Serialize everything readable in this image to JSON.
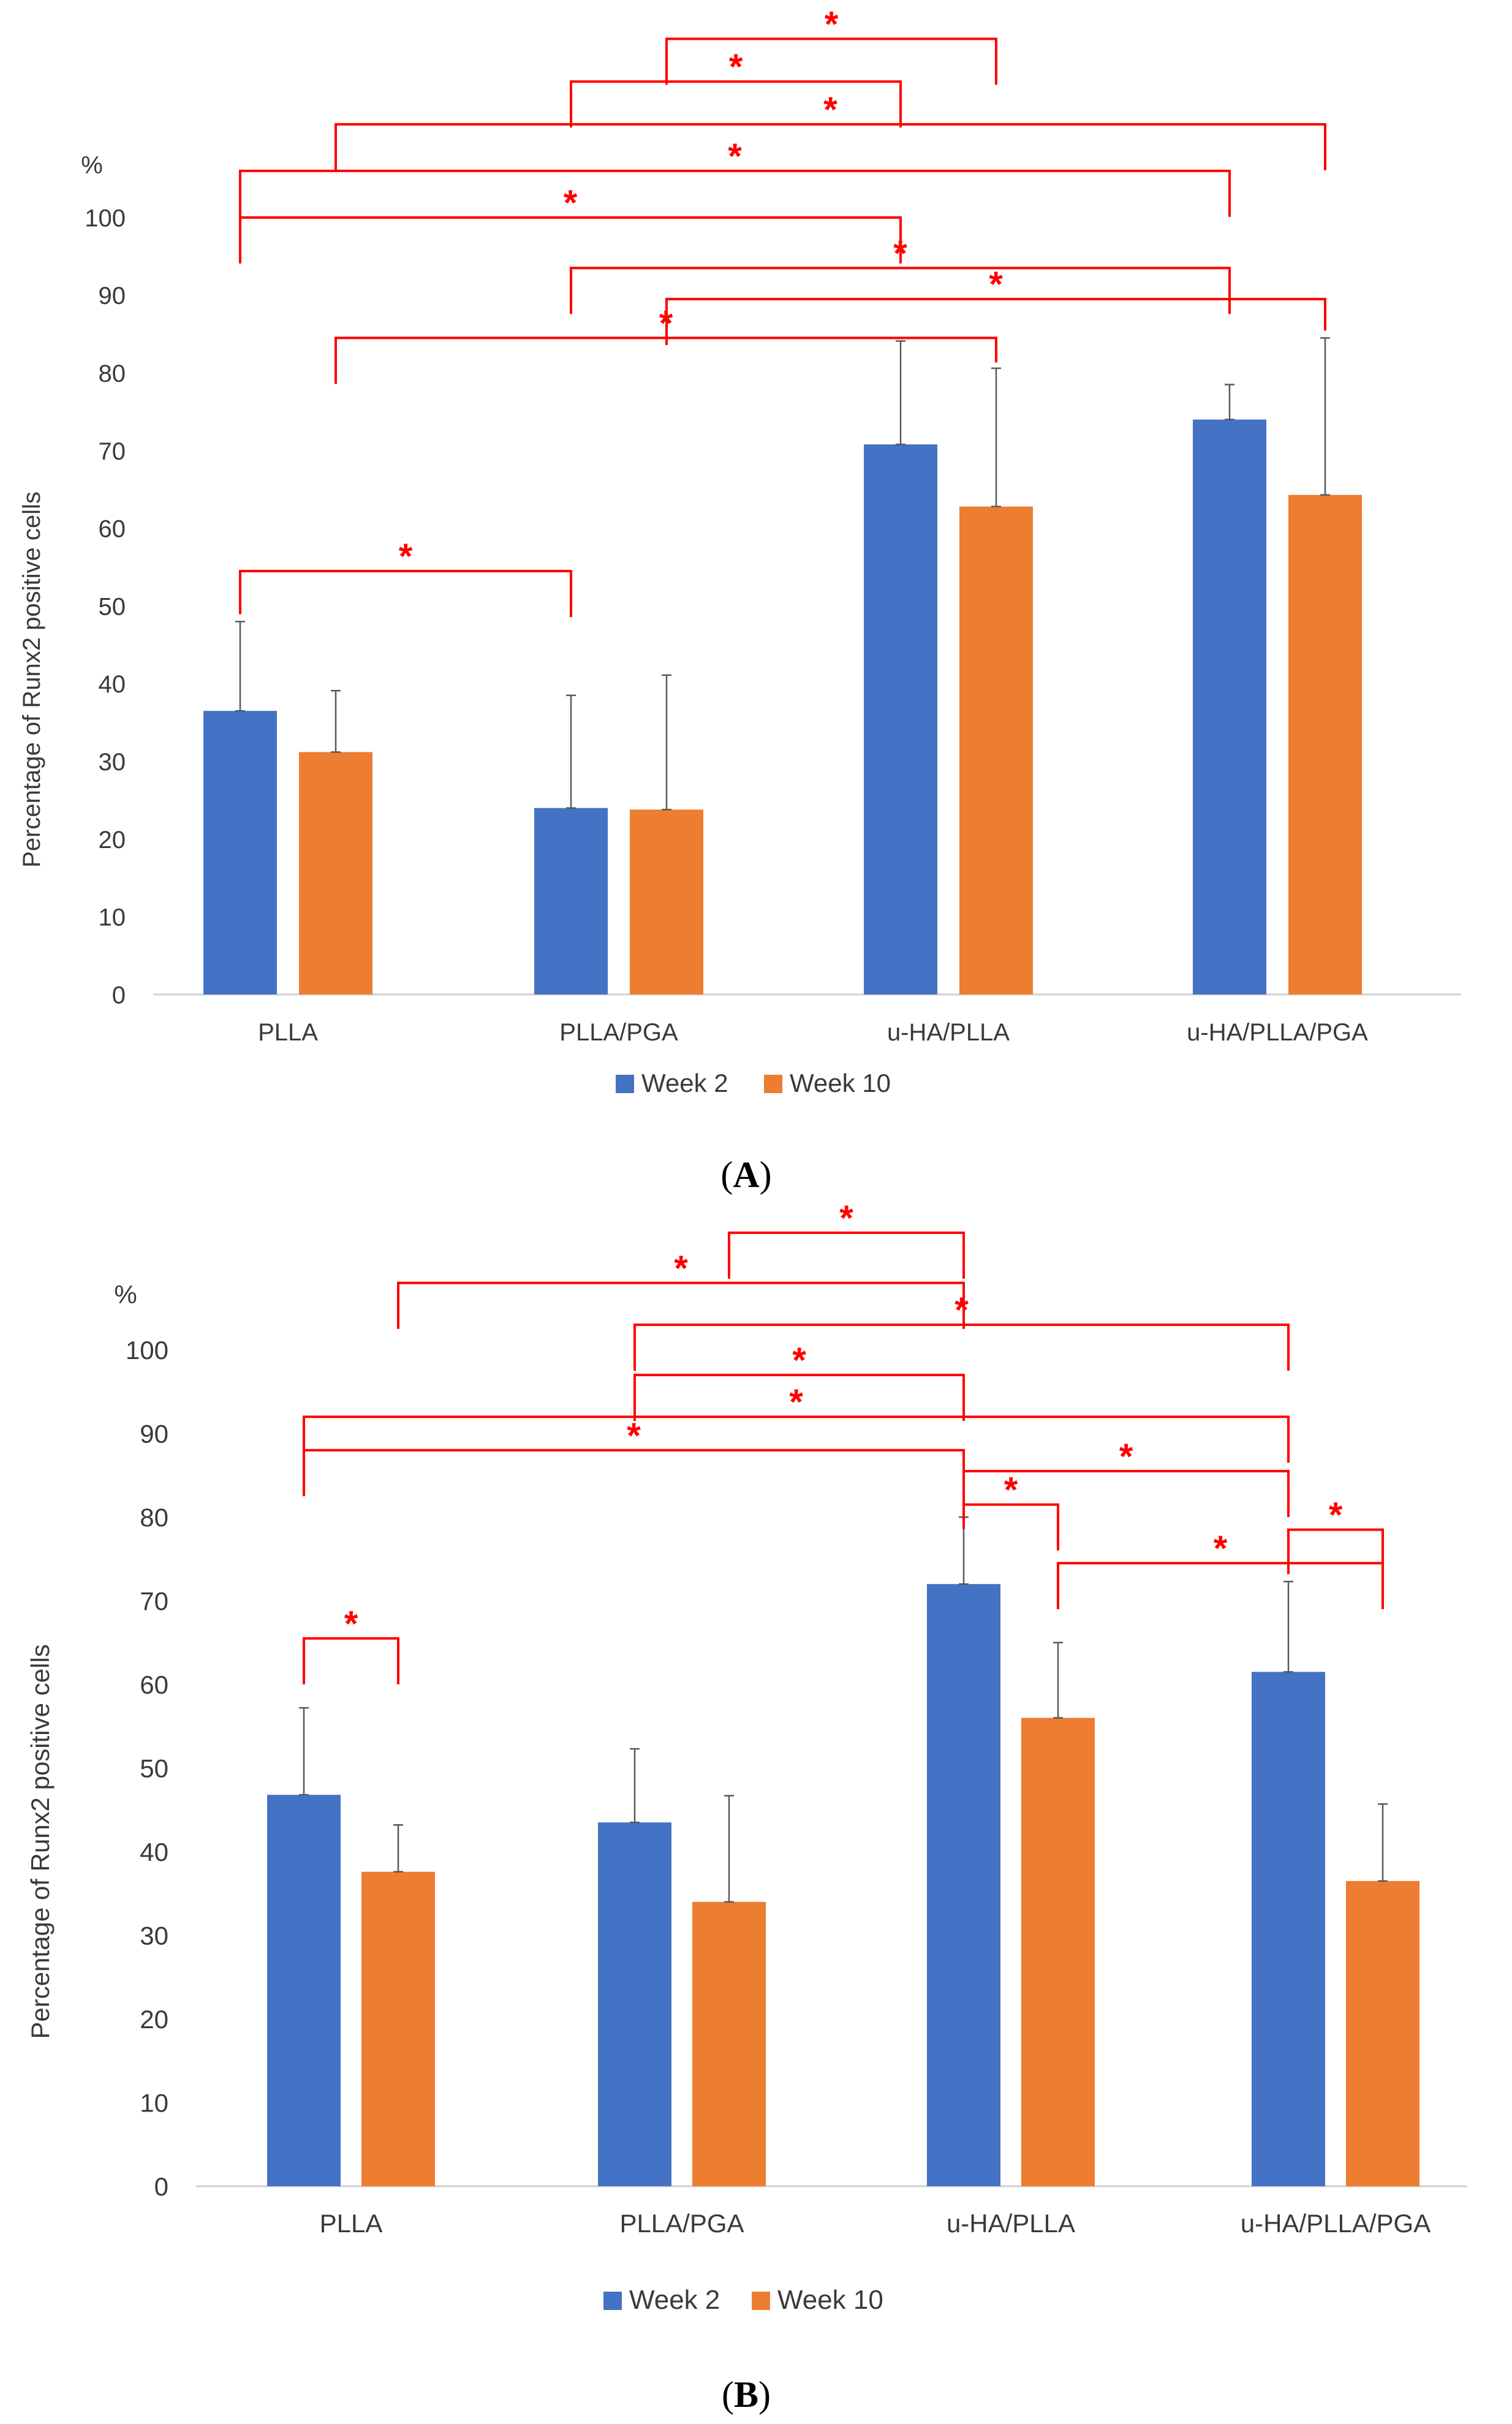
{
  "chart_data": [
    {
      "type": "bar",
      "panel_label": "(A)",
      "caption_letter": "A",
      "unit_label": "%",
      "ylabel": "Percentage of Runx2 positive cells",
      "ylim": [
        0,
        100
      ],
      "yticks": [
        0,
        10,
        20,
        30,
        40,
        50,
        60,
        70,
        80,
        90,
        100
      ],
      "categories": [
        "PLLA",
        "PLLA/PGA",
        "u-HA/PLLA",
        "u-HA/PLLA/PGA"
      ],
      "series": [
        {
          "name": "Week 2",
          "color": "#4472C4",
          "values": [
            36.5,
            24.0,
            70.8,
            74.0
          ],
          "errors": [
            11.5,
            14.5,
            13.3,
            4.5
          ]
        },
        {
          "name": "Week 10",
          "color": "#ED7D31",
          "values": [
            31.2,
            23.8,
            62.8,
            64.3
          ],
          "errors": [
            7.9,
            17.3,
            17.8,
            20.2
          ]
        }
      ],
      "significance_marker": "*",
      "significance_color": "#FF0000",
      "brackets": [
        {
          "from": [
            0,
            0
          ],
          "to": [
            1,
            0
          ],
          "level": 54.5,
          "marker": "*"
        },
        {
          "from": [
            0,
            1
          ],
          "to": [
            2,
            1
          ],
          "level": 84.5,
          "marker": "*"
        },
        {
          "from": [
            1,
            1
          ],
          "to": [
            3,
            1
          ],
          "level": 89.5,
          "marker": "*"
        },
        {
          "from": [
            1,
            0
          ],
          "to": [
            3,
            0
          ],
          "level": 93.5,
          "marker": "*"
        },
        {
          "from": [
            0,
            0
          ],
          "to": [
            2,
            0
          ],
          "level": 100.0,
          "marker": "*"
        },
        {
          "from": [
            0,
            0
          ],
          "to": [
            3,
            0
          ],
          "level": 106.0,
          "marker": "*"
        },
        {
          "from": [
            0,
            1
          ],
          "to": [
            3,
            1
          ],
          "level": 112.0,
          "marker": "*"
        },
        {
          "from": [
            1,
            0
          ],
          "to": [
            2,
            0
          ],
          "level": 117.5,
          "marker": "*"
        },
        {
          "from": [
            1,
            1
          ],
          "to": [
            2,
            1
          ],
          "level": 123.0,
          "marker": "*"
        }
      ],
      "legend": "bottom-center",
      "grid": false
    },
    {
      "type": "bar",
      "panel_label": "(B)",
      "caption_letter": "B",
      "unit_label": "%",
      "ylabel": "Percentage of Runx2 positive cells",
      "ylim": [
        0,
        100
      ],
      "yticks": [
        0,
        10,
        20,
        30,
        40,
        50,
        60,
        70,
        80,
        90,
        100
      ],
      "categories": [
        "PLLA",
        "PLLA/PGA",
        "u-HA/PLLA",
        "u-HA/PLLA/PGA"
      ],
      "series": [
        {
          "name": "Week 2",
          "color": "#4472C4",
          "values": [
            46.8,
            43.5,
            72.0,
            61.5
          ],
          "errors": [
            10.4,
            8.8,
            8.0,
            10.8
          ]
        },
        {
          "name": "Week 10",
          "color": "#ED7D31",
          "values": [
            37.6,
            34.0,
            56.0,
            36.5
          ],
          "errors": [
            5.6,
            12.7,
            9.0,
            9.2
          ]
        }
      ],
      "significance_marker": "*",
      "significance_color": "#FF0000",
      "brackets": [
        {
          "from": [
            0,
            0
          ],
          "to": [
            0,
            1
          ],
          "level": 65.5,
          "marker": "*"
        },
        {
          "from": [
            2,
            1
          ],
          "to": [
            3,
            1
          ],
          "level": 74.5,
          "marker": "*"
        },
        {
          "from": [
            3,
            0
          ],
          "to": [
            3,
            1
          ],
          "level": 78.5,
          "marker": "*"
        },
        {
          "from": [
            2,
            0
          ],
          "to": [
            2,
            1
          ],
          "level": 81.5,
          "marker": "*"
        },
        {
          "from": [
            2,
            0
          ],
          "to": [
            3,
            0
          ],
          "level": 85.5,
          "marker": "*"
        },
        {
          "from": [
            0,
            0
          ],
          "to": [
            2,
            0
          ],
          "level": 88.0,
          "marker": "*"
        },
        {
          "from": [
            0,
            0
          ],
          "to": [
            3,
            0
          ],
          "level": 92.0,
          "marker": "*"
        },
        {
          "from": [
            1,
            0
          ],
          "to": [
            2,
            0
          ],
          "level": 97.0,
          "marker": "*"
        },
        {
          "from": [
            1,
            0
          ],
          "to": [
            3,
            0
          ],
          "level": 103.0,
          "marker": "*"
        },
        {
          "from": [
            0,
            1
          ],
          "to": [
            2,
            0
          ],
          "level": 108.0,
          "marker": "*"
        },
        {
          "from": [
            1,
            1
          ],
          "to": [
            2,
            0
          ],
          "level": 114.0,
          "marker": "*"
        }
      ],
      "legend": "bottom-center",
      "grid": false
    }
  ]
}
